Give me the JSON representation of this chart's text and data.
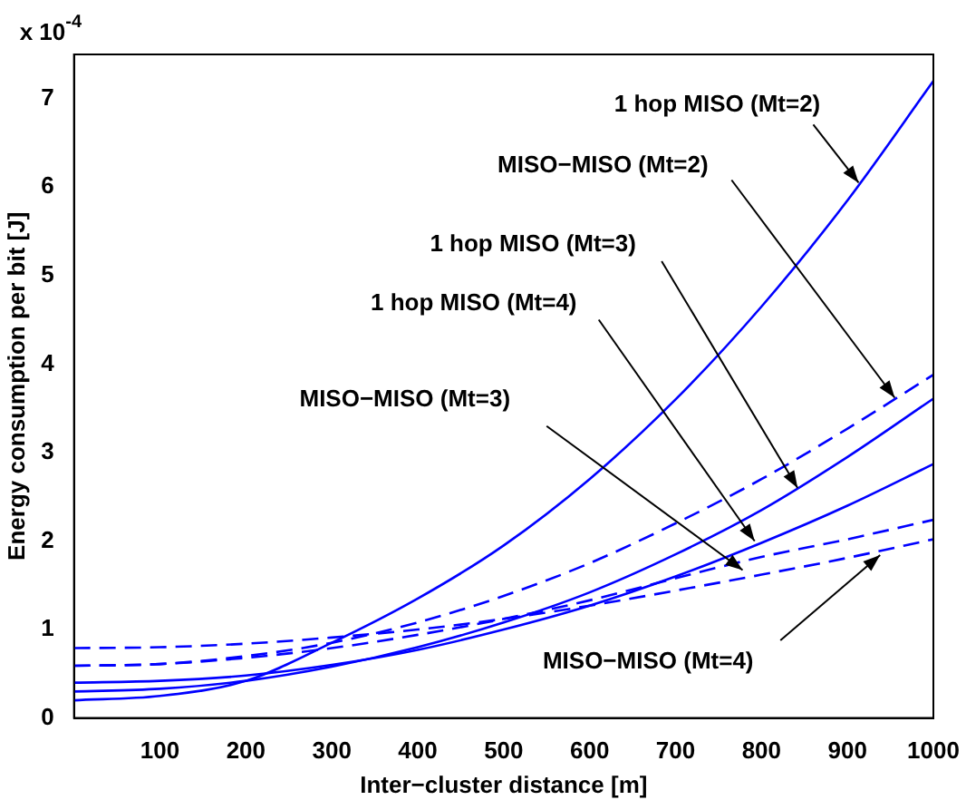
{
  "chart_data": {
    "type": "line",
    "xlabel": "Inter−cluster distance [m]",
    "ylabel": "Energy consumption per bit [J]",
    "x": [
      0,
      100,
      200,
      300,
      400,
      500,
      600,
      700,
      800,
      900,
      1000
    ],
    "series": [
      {
        "color": "#0000ff",
        "line_style": "solid",
        "values": [
          0.2,
          0.25,
          0.42,
          0.85,
          1.35,
          1.95,
          2.7,
          3.6,
          4.65,
          5.85,
          7.2
        ]
      },
      {
        "color": "#0000ff",
        "line_style": "dashed",
        "values": [
          0.59,
          0.61,
          0.7,
          0.85,
          1.08,
          1.38,
          1.75,
          2.2,
          2.7,
          3.27,
          3.88
        ]
      },
      {
        "color": "#0000ff",
        "line_style": "solid",
        "values": [
          0.3,
          0.33,
          0.42,
          0.58,
          0.8,
          1.08,
          1.42,
          1.85,
          2.35,
          2.95,
          3.61
        ]
      },
      {
        "color": "#0000ff",
        "line_style": "solid",
        "values": [
          0.4,
          0.42,
          0.48,
          0.6,
          0.77,
          1.0,
          1.27,
          1.6,
          1.98,
          2.4,
          2.87
        ]
      },
      {
        "color": "#0000ff",
        "line_style": "dashed",
        "values": [
          0.59,
          0.61,
          0.68,
          0.79,
          0.94,
          1.12,
          1.33,
          1.58,
          1.82,
          2.02,
          2.24
        ]
      },
      {
        "color": "#0000ff",
        "line_style": "dashed",
        "values": [
          0.79,
          0.8,
          0.84,
          0.91,
          1.0,
          1.12,
          1.27,
          1.44,
          1.62,
          1.81,
          2.02
        ]
      }
    ],
    "xlim": [
      0,
      1000
    ],
    "xticks": [
      100,
      200,
      300,
      400,
      500,
      600,
      700,
      800,
      900,
      1000
    ],
    "ylim": [
      0,
      7.5
    ],
    "yticks": [
      0,
      1,
      2,
      3,
      4,
      5,
      6,
      7
    ],
    "grid": false,
    "legend": false,
    "marker": "none",
    "annotations": [
      {
        "text": "1 hop MISO (Mt=2)",
        "x": 913,
        "y": 6.05
      },
      {
        "text": "MISO−MISO (Mt=2)",
        "x": 955,
        "y": 3.62
      },
      {
        "text": "1 hop MISO (Mt=3)",
        "x": 842,
        "y": 2.6
      },
      {
        "text": "1 hop MISO (Mt=4)",
        "x": 792,
        "y": 2.0
      },
      "MISO−MISO (Mt=3)",
      {
        "text": "MISO−MISO (Mt=4)",
        "x": 938,
        "y": 1.84
      },
      "x 10$^{-4}$"
    ]
  }
}
